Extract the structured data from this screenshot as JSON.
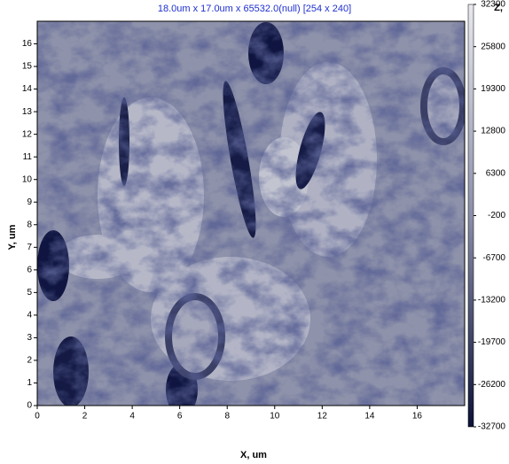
{
  "chart_data": {
    "type": "image",
    "title": "18.0um x 17.0um x 65532.0(null) [254 x 240]",
    "x_label": "X, um",
    "y_label": "Y, um",
    "colorbar_label": "Z,",
    "xlim": [
      0,
      18
    ],
    "ylim": [
      0,
      17
    ],
    "xticks": [
      0,
      2,
      4,
      6,
      8,
      10,
      12,
      14,
      16
    ],
    "yticks": [
      0,
      1,
      2,
      3,
      4,
      5,
      6,
      7,
      8,
      9,
      10,
      11,
      12,
      13,
      14,
      15,
      16
    ],
    "clim": [
      -32700,
      32300
    ],
    "cticks": [
      32300,
      25800,
      19300,
      12800,
      6300,
      -200,
      -6700,
      -13200,
      -19700,
      -26200,
      -32700
    ]
  }
}
